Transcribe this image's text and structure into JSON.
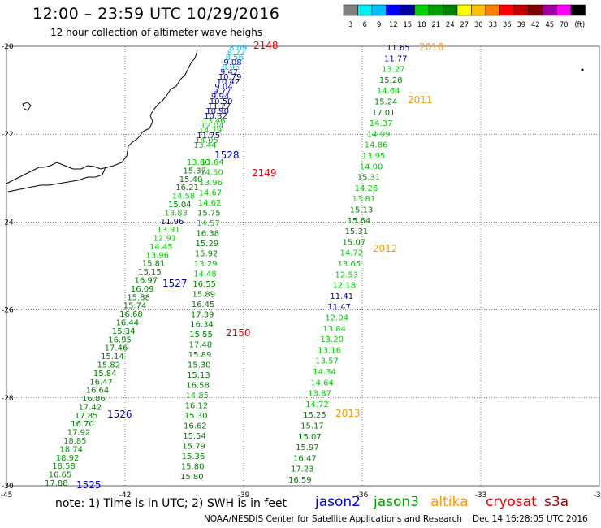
{
  "header": {
    "title": "12:00 – 23:59 UTC 10/29/2016",
    "subtitle": "12 hour collection of altimeter wave heighs"
  },
  "colorbar": {
    "colors": [
      "#808080",
      "#00f0f0",
      "#00c0ff",
      "#0000ff",
      "#0000a0",
      "#00d000",
      "#00a000",
      "#008000",
      "#ffff00",
      "#ffc000",
      "#ff8000",
      "#ff0000",
      "#c00000",
      "#800000",
      "#a000a0",
      "#ff00ff",
      "#000000"
    ],
    "labels": [
      "3",
      "6",
      "9",
      "12",
      "15",
      "18",
      "21",
      "24",
      "27",
      "30",
      "33",
      "36",
      "39",
      "42",
      "45",
      "70",
      "(ft)"
    ]
  },
  "axes": {
    "lat_labels": [
      "-20",
      "-22",
      "-24",
      "-26",
      "-28",
      "-30"
    ],
    "lon_labels": [
      "-45",
      "-42",
      "-39",
      "-36",
      "-33",
      "-30"
    ]
  },
  "legend": {
    "note": "note: 1) Time is in UTC; 2) SWH is in feet",
    "satellites": [
      {
        "name": "jason2",
        "color": "#0000cc"
      },
      {
        "name": "jason3",
        "color": "#00a000"
      },
      {
        "name": "altika",
        "color": "#ff9900"
      },
      {
        "name": "cryosat",
        "color": "#ee0000"
      },
      {
        "name": "s3a",
        "color": "#990000"
      }
    ],
    "credit": "NOAA/NESDIS Center for Satellite Applications and Research",
    "timestamp": "Dec 14 16:28:05 UTC 2016"
  },
  "tracks": [
    {
      "id": "2148",
      "color": "#ee0000",
      "labels": [
        "2148"
      ]
    },
    {
      "id": "2149",
      "color": "#ee0000",
      "labels": [
        "2149"
      ]
    },
    {
      "id": "2150",
      "color": "#ee0000",
      "labels": [
        "2150"
      ]
    },
    {
      "id": "1528",
      "color": "#0000cc",
      "labels": [
        "1528"
      ]
    },
    {
      "id": "1527",
      "color": "#0000cc",
      "labels": [
        "1527"
      ]
    },
    {
      "id": "1526",
      "color": "#0000cc",
      "labels": [
        "1526"
      ]
    },
    {
      "id": "1525",
      "color": "#0000cc",
      "labels": [
        "1525"
      ]
    },
    {
      "id": "2010",
      "color": "#ff9900",
      "labels": [
        "2010"
      ]
    },
    {
      "id": "2011",
      "color": "#ff9900",
      "labels": [
        "2011"
      ]
    },
    {
      "id": "2012",
      "color": "#ff9900",
      "labels": [
        "2012"
      ]
    },
    {
      "id": "2013",
      "color": "#ff9900",
      "labels": [
        "2013"
      ]
    }
  ],
  "wave_columns": [
    {
      "name": "track-a-top",
      "values": [
        {
          "v": "8.09",
          "c": "#00c0ff"
        },
        {
          "v": "8.22",
          "c": "#00c0ff"
        },
        {
          "v": "8.56",
          "c": "#00c0ff"
        },
        {
          "v": "9.08",
          "c": "#0000ff"
        },
        {
          "v": "8.95",
          "c": "#00c0ff"
        },
        {
          "v": "9.42",
          "c": "#0000ff"
        },
        {
          "v": "10.79",
          "c": "#0000a0"
        },
        {
          "v": "10.42",
          "c": "#0000a0"
        },
        {
          "v": "9.04",
          "c": "#0000ff"
        },
        {
          "v": "9.77",
          "c": "#0000ff"
        },
        {
          "v": "9.94",
          "c": "#0000ff"
        },
        {
          "v": "10.50",
          "c": "#0000a0"
        },
        {
          "v": "11.27",
          "c": "#0000a0"
        },
        {
          "v": "10.90",
          "c": "#0000a0"
        },
        {
          "v": "10.32",
          "c": "#0000a0"
        },
        {
          "v": "13.46",
          "c": "#00d000"
        },
        {
          "v": "12.04",
          "c": "#00d000"
        },
        {
          "v": "14.79",
          "c": "#00d000"
        },
        {
          "v": "11.75",
          "c": "#0000a0"
        },
        {
          "v": "14.05",
          "c": "#00d000"
        },
        {
          "v": "13.44",
          "c": "#00d000"
        }
      ]
    },
    {
      "name": "track-b-left",
      "values": [
        {
          "v": "13.60",
          "c": "#00d000"
        },
        {
          "v": "15.37",
          "c": "#008000"
        },
        {
          "v": "15.40",
          "c": "#008000"
        },
        {
          "v": "16.21",
          "c": "#008000"
        },
        {
          "v": "14.58",
          "c": "#00d000"
        },
        {
          "v": "15.04",
          "c": "#008000"
        },
        {
          "v": "13.83",
          "c": "#00d000"
        },
        {
          "v": "11.96",
          "c": "#0000a0"
        },
        {
          "v": "13.91",
          "c": "#00d000"
        },
        {
          "v": "12.91",
          "c": "#00d000"
        },
        {
          "v": "14.45",
          "c": "#00d000"
        },
        {
          "v": "13.96",
          "c": "#00d000"
        },
        {
          "v": "15.81",
          "c": "#008000"
        },
        {
          "v": "15.15",
          "c": "#008000"
        },
        {
          "v": "16.97",
          "c": "#008000"
        },
        {
          "v": "16.09",
          "c": "#008000"
        },
        {
          "v": "15.88",
          "c": "#008000"
        },
        {
          "v": "15.74",
          "c": "#008000"
        },
        {
          "v": "16.68",
          "c": "#008000"
        },
        {
          "v": "16.44",
          "c": "#008000"
        },
        {
          "v": "15.34",
          "c": "#008000"
        },
        {
          "v": "16.95",
          "c": "#008000"
        },
        {
          "v": "17.46",
          "c": "#008000"
        },
        {
          "v": "15.14",
          "c": "#008000"
        },
        {
          "v": "15.82",
          "c": "#008000"
        },
        {
          "v": "15.84",
          "c": "#008000"
        },
        {
          "v": "16.47",
          "c": "#008000"
        },
        {
          "v": "16.64",
          "c": "#008000"
        },
        {
          "v": "16.86",
          "c": "#008000"
        },
        {
          "v": "17.42",
          "c": "#008000"
        },
        {
          "v": "17.85",
          "c": "#008000"
        },
        {
          "v": "16.70",
          "c": "#008000"
        },
        {
          "v": "17.92",
          "c": "#008000"
        },
        {
          "v": "18.85",
          "c": "#00a000"
        },
        {
          "v": "18.74",
          "c": "#00a000"
        },
        {
          "v": "18.92",
          "c": "#00a000"
        },
        {
          "v": "18.58",
          "c": "#00a000"
        },
        {
          "v": "16.65",
          "c": "#008000"
        },
        {
          "v": "17.88",
          "c": "#008000"
        }
      ]
    },
    {
      "name": "track-c-mid",
      "values": [
        {
          "v": "13.64",
          "c": "#00d000"
        },
        {
          "v": "14.50",
          "c": "#00d000"
        },
        {
          "v": "13.96",
          "c": "#00d000"
        },
        {
          "v": "14.67",
          "c": "#00d000"
        },
        {
          "v": "14.62",
          "c": "#00d000"
        },
        {
          "v": "15.75",
          "c": "#008000"
        },
        {
          "v": "14.57",
          "c": "#00d000"
        },
        {
          "v": "16.38",
          "c": "#008000"
        },
        {
          "v": "15.29",
          "c": "#008000"
        },
        {
          "v": "15.92",
          "c": "#008000"
        },
        {
          "v": "13.29",
          "c": "#00d000"
        },
        {
          "v": "14.48",
          "c": "#00d000"
        },
        {
          "v": "16.55",
          "c": "#008000"
        },
        {
          "v": "15.89",
          "c": "#008000"
        },
        {
          "v": "16.45",
          "c": "#008000"
        },
        {
          "v": "17.39",
          "c": "#008000"
        },
        {
          "v": "16.34",
          "c": "#008000"
        },
        {
          "v": "15.55",
          "c": "#008000"
        },
        {
          "v": "17.48",
          "c": "#008000"
        },
        {
          "v": "15.89",
          "c": "#008000"
        },
        {
          "v": "15.30",
          "c": "#008000"
        },
        {
          "v": "15.13",
          "c": "#008000"
        },
        {
          "v": "16.58",
          "c": "#008000"
        },
        {
          "v": "14.85",
          "c": "#00d000"
        },
        {
          "v": "16.12",
          "c": "#008000"
        },
        {
          "v": "15.30",
          "c": "#008000"
        },
        {
          "v": "16.62",
          "c": "#008000"
        },
        {
          "v": "15.54",
          "c": "#008000"
        },
        {
          "v": "15.79",
          "c": "#008000"
        },
        {
          "v": "15.36",
          "c": "#008000"
        },
        {
          "v": "15.80",
          "c": "#008000"
        },
        {
          "v": "15.80",
          "c": "#008000"
        }
      ]
    },
    {
      "name": "track-d-right",
      "values": [
        {
          "v": "11.65",
          "c": "#0000a0"
        },
        {
          "v": "11.77",
          "c": "#0000a0"
        },
        {
          "v": "13.27",
          "c": "#00d000"
        },
        {
          "v": "15.28",
          "c": "#008000"
        },
        {
          "v": "14.64",
          "c": "#00d000"
        },
        {
          "v": "15.24",
          "c": "#008000"
        },
        {
          "v": "17.01",
          "c": "#008000"
        },
        {
          "v": "14.37",
          "c": "#00d000"
        },
        {
          "v": "14.09",
          "c": "#00d000"
        },
        {
          "v": "14.86",
          "c": "#00d000"
        },
        {
          "v": "13.95",
          "c": "#00d000"
        },
        {
          "v": "14.00",
          "c": "#00d000"
        },
        {
          "v": "15.31",
          "c": "#008000"
        },
        {
          "v": "14.26",
          "c": "#00d000"
        },
        {
          "v": "13.81",
          "c": "#00d000"
        },
        {
          "v": "15.13",
          "c": "#008000"
        },
        {
          "v": "15.64",
          "c": "#008000"
        },
        {
          "v": "15.31",
          "c": "#008000"
        },
        {
          "v": "15.07",
          "c": "#008000"
        },
        {
          "v": "14.72",
          "c": "#00d000"
        },
        {
          "v": "13.65",
          "c": "#00d000"
        },
        {
          "v": "12.53",
          "c": "#00d000"
        },
        {
          "v": "12.18",
          "c": "#00d000"
        },
        {
          "v": "11.41",
          "c": "#0000a0"
        },
        {
          "v": "11.47",
          "c": "#0000a0"
        },
        {
          "v": "12.04",
          "c": "#00d000"
        },
        {
          "v": "13.84",
          "c": "#00d000"
        },
        {
          "v": "13.20",
          "c": "#00d000"
        },
        {
          "v": "13.16",
          "c": "#00d000"
        },
        {
          "v": "13.57",
          "c": "#00d000"
        },
        {
          "v": "14.34",
          "c": "#00d000"
        },
        {
          "v": "14.64",
          "c": "#00d000"
        },
        {
          "v": "13.87",
          "c": "#00d000"
        },
        {
          "v": "14.72",
          "c": "#00d000"
        },
        {
          "v": "15.25",
          "c": "#008000"
        },
        {
          "v": "15.17",
          "c": "#008000"
        },
        {
          "v": "15.07",
          "c": "#008000"
        },
        {
          "v": "15.97",
          "c": "#008000"
        },
        {
          "v": "16.47",
          "c": "#008000"
        },
        {
          "v": "17.23",
          "c": "#008000"
        },
        {
          "v": "16.59",
          "c": "#008000"
        }
      ]
    }
  ]
}
